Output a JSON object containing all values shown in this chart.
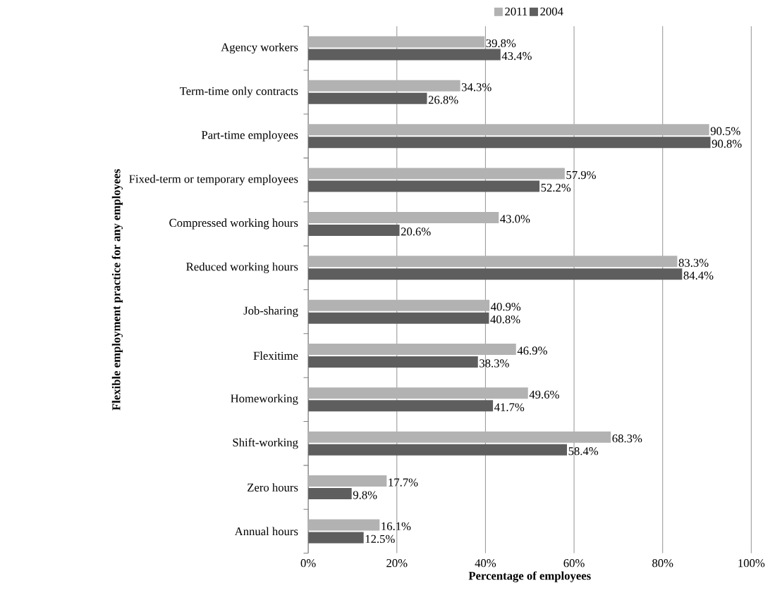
{
  "chart_data": {
    "type": "bar",
    "orientation": "horizontal",
    "xlabel": "Percentage of employees",
    "ylabel": "Flexible employment practice for any employees",
    "categories": [
      "Agency workers",
      "Term-time only contracts",
      "Part-time employees",
      "Fixed-term or temporary employees",
      "Compressed working hours",
      "Reduced working hours",
      "Job-sharing",
      "Flexitime",
      "Homeworking",
      "Shift-working",
      "Zero hours",
      "Annual hours"
    ],
    "series": [
      {
        "name": "2011",
        "color": "#b2b2b2",
        "values": [
          39.8,
          34.3,
          90.5,
          57.9,
          43.0,
          83.3,
          40.9,
          46.9,
          49.6,
          68.3,
          17.7,
          16.1
        ],
        "value_labels": [
          "39.8%",
          "34.3%",
          "90.5%",
          "57.9%",
          "43.0%",
          "83.3%",
          "40.9%",
          "46.9%",
          "49.6%",
          "68.3%",
          "17.7%",
          "16.1%"
        ]
      },
      {
        "name": "2004",
        "color": "#5e5e5e",
        "values": [
          43.4,
          26.8,
          90.8,
          52.2,
          20.6,
          84.4,
          40.8,
          38.3,
          41.7,
          58.4,
          9.8,
          12.5
        ],
        "value_labels": [
          "43.4%",
          "26.8%",
          "90.8%",
          "52.2%",
          "20.6%",
          "84.4%",
          "40.8%",
          "38.3%",
          "41.7%",
          "58.4%",
          "9.8%",
          "12.5%"
        ]
      }
    ],
    "xlim": [
      0,
      100
    ],
    "xticks": [
      {
        "value": 0,
        "label": "0%"
      },
      {
        "value": 20,
        "label": "20%"
      },
      {
        "value": 40,
        "label": "40%"
      },
      {
        "value": 60,
        "label": "60%"
      },
      {
        "value": 80,
        "label": "80%"
      },
      {
        "value": 100,
        "label": "100%"
      }
    ],
    "grid": "x",
    "legend": "top"
  }
}
